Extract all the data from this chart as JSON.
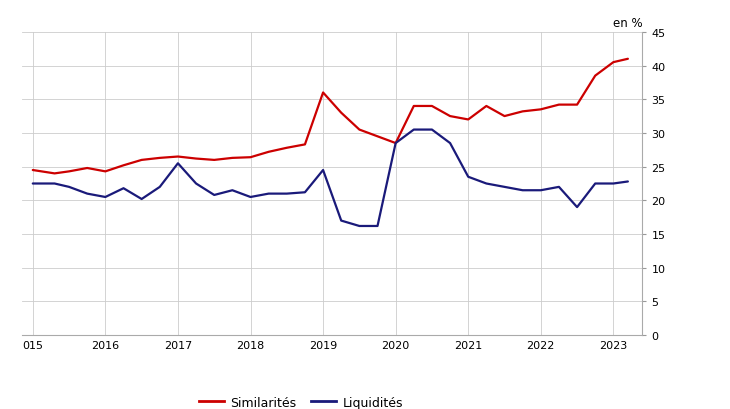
{
  "title_label": "en %",
  "legend_labels": [
    "Similarités",
    "Liquidités"
  ],
  "similarites_color": "#cc0000",
  "liquidites_color": "#1a1a7a",
  "background_color": "#ffffff",
  "grid_color": "#cccccc",
  "ylim": [
    0,
    45
  ],
  "yticks": [
    0,
    5,
    10,
    15,
    20,
    25,
    30,
    35,
    40,
    45
  ],
  "xlim_left": 2014.85,
  "xlim_right": 2023.4,
  "x_tick_positions": [
    2015.0,
    2016.0,
    2017.0,
    2018.0,
    2019.0,
    2020.0,
    2021.0,
    2022.0,
    2023.0
  ],
  "xlabel_ticks": [
    "015",
    "2016",
    "2017",
    "2018",
    "2019",
    "2020",
    "2021",
    "2022",
    "2023"
  ],
  "similarites_x": [
    2015.0,
    2015.3,
    2015.5,
    2015.75,
    2016.0,
    2016.25,
    2016.5,
    2016.75,
    2017.0,
    2017.25,
    2017.5,
    2017.75,
    2018.0,
    2018.25,
    2018.5,
    2018.75,
    2019.0,
    2019.25,
    2019.5,
    2019.75,
    2020.0,
    2020.25,
    2020.5,
    2020.75,
    2021.0,
    2021.25,
    2021.5,
    2021.75,
    2022.0,
    2022.25,
    2022.5,
    2022.75,
    2023.0,
    2023.2
  ],
  "similarites_y": [
    24.5,
    24.0,
    24.3,
    24.8,
    24.3,
    25.2,
    26.0,
    26.3,
    26.5,
    26.2,
    26.0,
    26.3,
    26.4,
    27.2,
    27.8,
    28.3,
    36.0,
    33.0,
    30.5,
    29.5,
    28.5,
    34.0,
    34.0,
    32.5,
    32.0,
    34.0,
    32.5,
    33.2,
    33.5,
    34.2,
    34.2,
    38.5,
    40.5,
    41.0
  ],
  "liquidites_x": [
    2015.0,
    2015.3,
    2015.5,
    2015.75,
    2016.0,
    2016.25,
    2016.5,
    2016.75,
    2017.0,
    2017.25,
    2017.5,
    2017.75,
    2018.0,
    2018.25,
    2018.5,
    2018.75,
    2019.0,
    2019.25,
    2019.5,
    2019.75,
    2020.0,
    2020.25,
    2020.5,
    2020.75,
    2021.0,
    2021.25,
    2021.5,
    2021.75,
    2022.0,
    2022.25,
    2022.5,
    2022.75,
    2023.0,
    2023.2
  ],
  "liquidites_y": [
    22.5,
    22.5,
    22.0,
    21.0,
    20.5,
    21.8,
    20.2,
    22.0,
    25.5,
    22.5,
    20.8,
    21.5,
    20.5,
    21.0,
    21.0,
    21.2,
    24.5,
    17.0,
    16.2,
    16.2,
    28.5,
    30.5,
    30.5,
    28.5,
    23.5,
    22.5,
    22.0,
    21.5,
    21.5,
    22.0,
    19.0,
    22.5,
    22.5,
    22.8
  ],
  "linewidth": 1.6,
  "tick_fontsize": 8,
  "legend_fontsize": 9
}
